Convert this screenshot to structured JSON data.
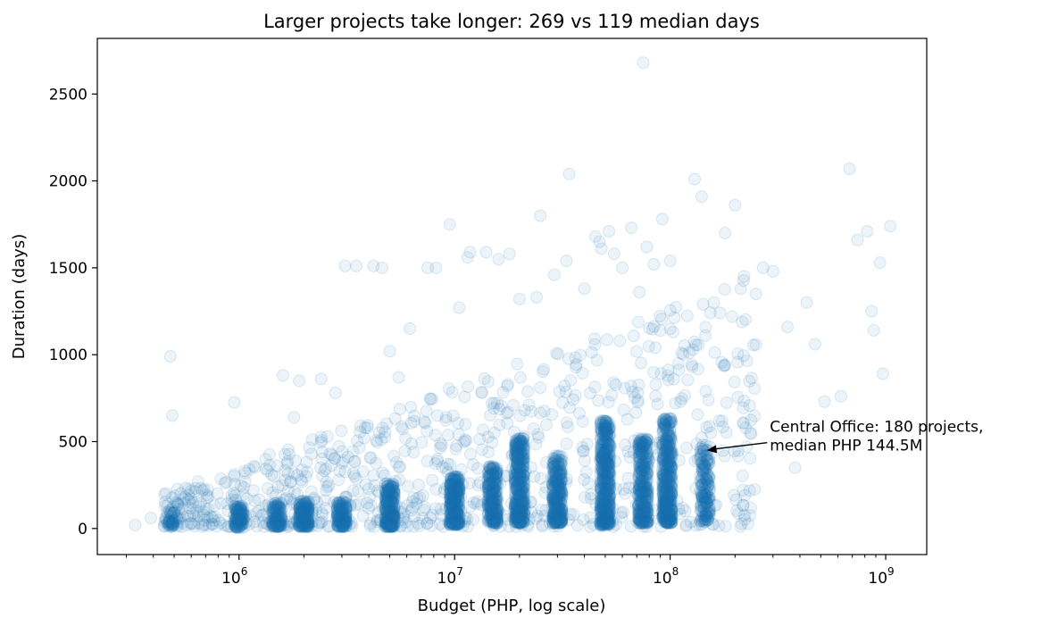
{
  "chart_data": {
    "type": "scatter",
    "title": "Larger projects take longer: 269 vs 119 median days",
    "xlabel": "Budget (PHP, log scale)",
    "ylabel": "Duration (days)",
    "xscale": "log",
    "xlim": [
      220000,
      1550000000
    ],
    "ylim": [
      -150,
      2820
    ],
    "x_ticks": [
      {
        "value": 1000000,
        "base": "10",
        "exp": "6"
      },
      {
        "value": 10000000,
        "base": "10",
        "exp": "7"
      },
      {
        "value": 100000000,
        "base": "10",
        "exp": "8"
      },
      {
        "value": 1000000000,
        "base": "10",
        "exp": "9"
      }
    ],
    "y_ticks": [
      0,
      500,
      1000,
      1500,
      2000,
      2500
    ],
    "grid": false,
    "marker_color": "#1f77b4",
    "marker_alpha": 0.08,
    "annotation": {
      "text_line1": "Central Office: 180 projects,",
      "text_line2": "median PHP 144.5M",
      "point": [
        145000000,
        450
      ],
      "text_anchor": [
        290000000,
        530
      ]
    },
    "clusters": [
      {
        "budget": 480000,
        "n": 40,
        "ymin": 10,
        "ymax": 110
      },
      {
        "budget": 1000000,
        "n": 120,
        "ymin": 5,
        "ymax": 130
      },
      {
        "budget": 1500000,
        "n": 120,
        "ymin": 10,
        "ymax": 150
      },
      {
        "budget": 2000000,
        "n": 200,
        "ymin": 10,
        "ymax": 160
      },
      {
        "budget": 3000000,
        "n": 150,
        "ymin": 10,
        "ymax": 160
      },
      {
        "budget": 5000000,
        "n": 260,
        "ymin": 10,
        "ymax": 260
      },
      {
        "budget": 10000000,
        "n": 300,
        "ymin": 20,
        "ymax": 300
      },
      {
        "budget": 15000000,
        "n": 280,
        "ymin": 30,
        "ymax": 360
      },
      {
        "budget": 20000000,
        "n": 420,
        "ymin": 30,
        "ymax": 520
      },
      {
        "budget": 30000000,
        "n": 320,
        "ymin": 30,
        "ymax": 420
      },
      {
        "budget": 50000000,
        "n": 520,
        "ymin": 20,
        "ymax": 620
      },
      {
        "budget": 75000000,
        "n": 360,
        "ymin": 30,
        "ymax": 520
      },
      {
        "budget": 97000000,
        "n": 480,
        "ymin": 30,
        "ymax": 640
      },
      {
        "budget": 145000000,
        "n": 180,
        "ymin": 40,
        "ymax": 480
      }
    ],
    "outliers": [
      [
        330000,
        20
      ],
      [
        390000,
        60
      ],
      [
        480000,
        990
      ],
      [
        490000,
        650
      ],
      [
        560000,
        180
      ],
      [
        950000,
        725
      ],
      [
        1600000,
        880
      ],
      [
        1800000,
        640
      ],
      [
        1900000,
        850
      ],
      [
        2400000,
        860
      ],
      [
        2800000,
        780
      ],
      [
        3100000,
        1510
      ],
      [
        3500000,
        1510
      ],
      [
        4200000,
        1510
      ],
      [
        4600000,
        1500
      ],
      [
        5000000,
        1020
      ],
      [
        5500000,
        870
      ],
      [
        6200000,
        1150
      ],
      [
        7500000,
        1500
      ],
      [
        8200000,
        1500
      ],
      [
        9500000,
        1750
      ],
      [
        10500000,
        1270
      ],
      [
        11500000,
        1560
      ],
      [
        11800000,
        1590
      ],
      [
        14000000,
        1590
      ],
      [
        16000000,
        1550
      ],
      [
        18000000,
        1580
      ],
      [
        20000000,
        1320
      ],
      [
        24000000,
        1330
      ],
      [
        25000000,
        1800
      ],
      [
        29000000,
        1460
      ],
      [
        33000000,
        1540
      ],
      [
        34000000,
        2040
      ],
      [
        40000000,
        1380
      ],
      [
        45000000,
        1680
      ],
      [
        47000000,
        1650
      ],
      [
        48000000,
        1610
      ],
      [
        52000000,
        1710
      ],
      [
        55000000,
        1580
      ],
      [
        60000000,
        1500
      ],
      [
        66000000,
        1730
      ],
      [
        72000000,
        1360
      ],
      [
        75000000,
        2680
      ],
      [
        78000000,
        1620
      ],
      [
        84000000,
        1520
      ],
      [
        92000000,
        1780
      ],
      [
        100000000,
        1540
      ],
      [
        130000000,
        2010
      ],
      [
        140000000,
        1910
      ],
      [
        170000000,
        1240
      ],
      [
        180000000,
        1700
      ],
      [
        200000000,
        1860
      ],
      [
        220000000,
        1450
      ],
      [
        250000000,
        1350
      ],
      [
        270000000,
        1500
      ],
      [
        300000000,
        1480
      ],
      [
        350000000,
        1160
      ],
      [
        380000000,
        350
      ],
      [
        430000000,
        1300
      ],
      [
        470000000,
        1060
      ],
      [
        520000000,
        730
      ],
      [
        620000000,
        760
      ],
      [
        680000000,
        2070
      ],
      [
        740000000,
        1660
      ],
      [
        820000000,
        1710
      ],
      [
        860000000,
        1250
      ],
      [
        880000000,
        1140
      ],
      [
        940000000,
        1530
      ],
      [
        970000000,
        890
      ],
      [
        1050000000,
        1740
      ]
    ]
  }
}
